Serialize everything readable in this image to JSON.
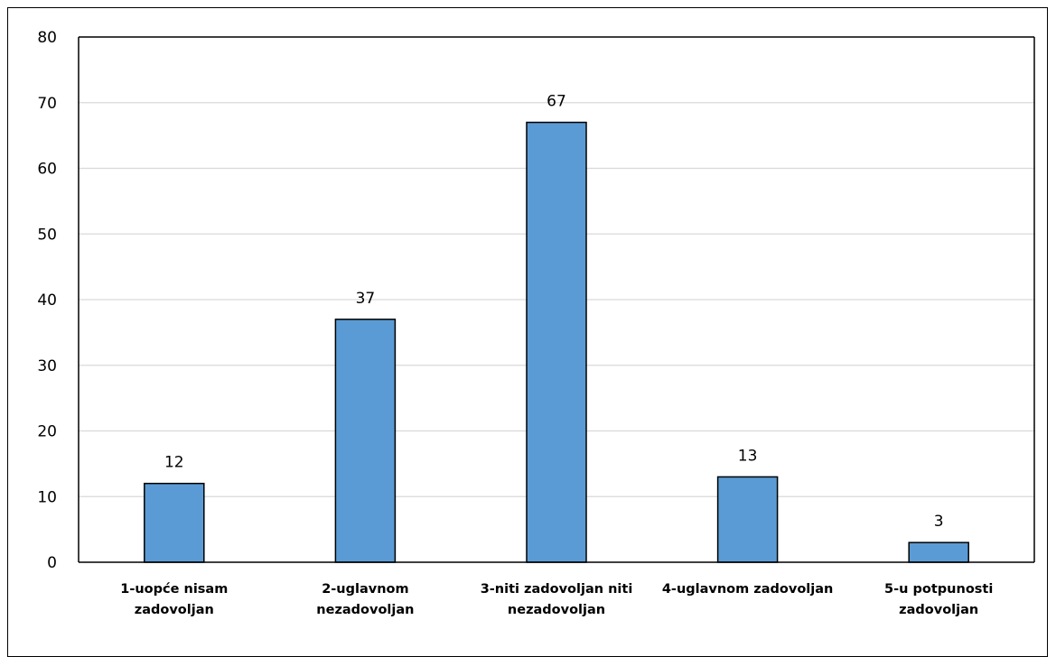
{
  "chart_data": {
    "type": "bar",
    "categories": [
      [
        "1-uopće nisam",
        "zadovoljan"
      ],
      [
        "2-uglavnom",
        "nezadovoljan"
      ],
      [
        "3-niti zadovoljan niti",
        "nezadovoljan"
      ],
      [
        "4-uglavnom zadovoljan"
      ],
      [
        "5-u potpunosti",
        "zadovoljan"
      ]
    ],
    "values": [
      12,
      37,
      67,
      13,
      3
    ],
    "title": "",
    "xlabel": "",
    "ylabel": "",
    "ylim": [
      0,
      80
    ],
    "yticks": [
      0,
      10,
      20,
      30,
      40,
      50,
      60,
      70,
      80
    ],
    "grid": true,
    "data_labels": true,
    "colors": {
      "bar_fill": "#5B9BD5",
      "bar_stroke": "#000000",
      "grid": "#D9D9D9",
      "axis": "#000000"
    }
  }
}
